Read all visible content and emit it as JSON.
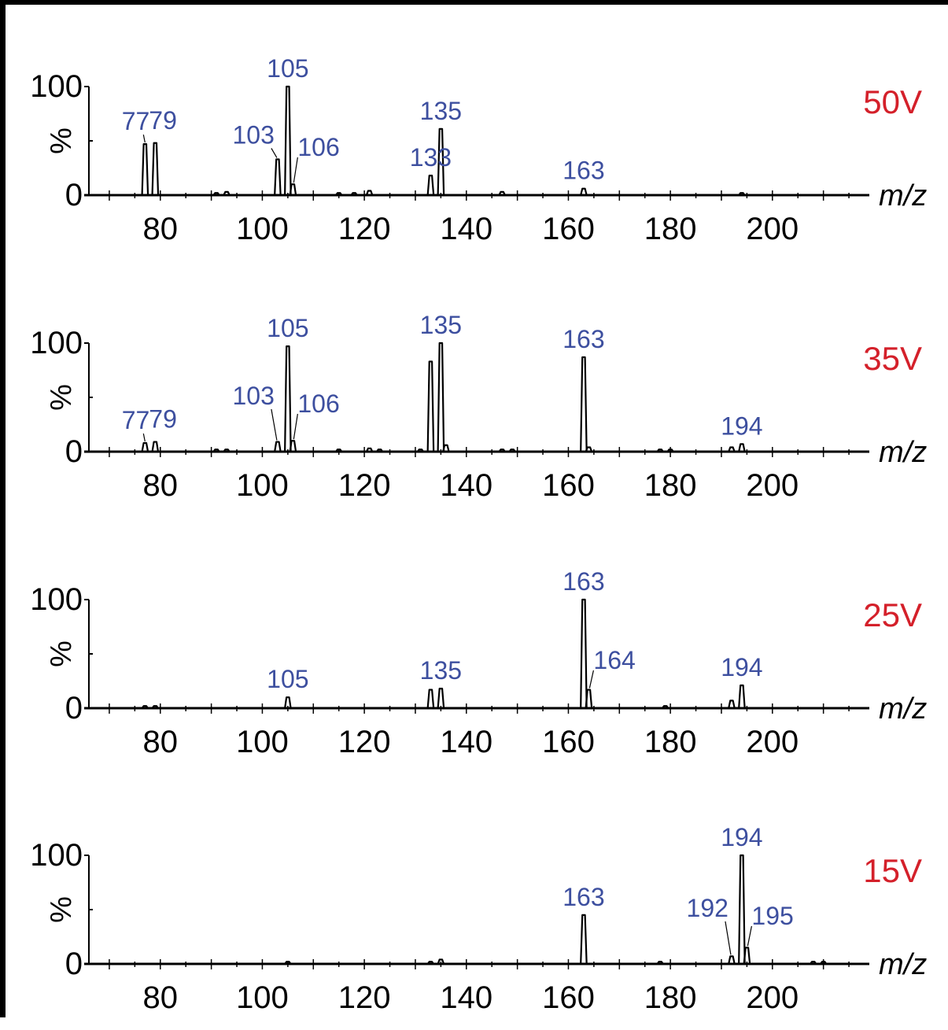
{
  "colors": {
    "peak_label": "#3d4f9f",
    "voltage": "#d4202a",
    "axis": "#000000"
  },
  "chart_data": [
    {
      "type": "line",
      "title": "50V",
      "xlabel": "m/z",
      "ylabel": "%",
      "xlim": [
        66,
        219
      ],
      "ylim": [
        0,
        100
      ],
      "x_ticks": [
        "80",
        "100",
        "120",
        "140",
        "160",
        "180",
        "200"
      ],
      "y_ticks": [
        "0",
        "100"
      ],
      "peaks": [
        [
          77,
          47
        ],
        [
          79,
          48
        ],
        [
          91,
          2
        ],
        [
          93,
          3
        ],
        [
          103,
          33
        ],
        [
          105,
          100
        ],
        [
          106,
          10
        ],
        [
          115,
          2
        ],
        [
          118,
          2
        ],
        [
          121,
          4
        ],
        [
          133,
          18
        ],
        [
          135,
          61
        ],
        [
          147,
          3
        ],
        [
          163,
          6
        ],
        [
          194,
          2
        ]
      ],
      "labels": [
        {
          "mz": 77,
          "text": "77"
        },
        {
          "mz": 79,
          "text": "79"
        },
        {
          "mz": 103,
          "text": "103"
        },
        {
          "mz": 105,
          "text": "105"
        },
        {
          "mz": 106,
          "text": "106"
        },
        {
          "mz": 133,
          "text": "133"
        },
        {
          "mz": 135,
          "text": "135"
        },
        {
          "mz": 163,
          "text": "163"
        }
      ]
    },
    {
      "type": "line",
      "title": "35V",
      "xlabel": "m/z",
      "ylabel": "%",
      "xlim": [
        66,
        219
      ],
      "ylim": [
        0,
        100
      ],
      "x_ticks": [
        "80",
        "100",
        "120",
        "140",
        "160",
        "180",
        "200"
      ],
      "y_ticks": [
        "0",
        "100"
      ],
      "peaks": [
        [
          77,
          8
        ],
        [
          79,
          9
        ],
        [
          91,
          2
        ],
        [
          93,
          2
        ],
        [
          103,
          9
        ],
        [
          105,
          97
        ],
        [
          106,
          10
        ],
        [
          115,
          2
        ],
        [
          121,
          3
        ],
        [
          123,
          2
        ],
        [
          131,
          2
        ],
        [
          133,
          83
        ],
        [
          135,
          100
        ],
        [
          136,
          6
        ],
        [
          147,
          2
        ],
        [
          149,
          2
        ],
        [
          163,
          87
        ],
        [
          164,
          4
        ],
        [
          178,
          2
        ],
        [
          180,
          2
        ],
        [
          192,
          4
        ],
        [
          194,
          7
        ]
      ],
      "labels": [
        {
          "mz": 77,
          "text": "77"
        },
        {
          "mz": 79,
          "text": "79"
        },
        {
          "mz": 103,
          "text": "103"
        },
        {
          "mz": 105,
          "text": "105"
        },
        {
          "mz": 106,
          "text": "106"
        },
        {
          "mz": 135,
          "text": "135"
        },
        {
          "mz": 163,
          "text": "163"
        },
        {
          "mz": 194,
          "text": "194"
        }
      ]
    },
    {
      "type": "line",
      "title": "25V",
      "xlabel": "m/z",
      "ylabel": "%",
      "xlim": [
        66,
        219
      ],
      "ylim": [
        0,
        100
      ],
      "x_ticks": [
        "80",
        "100",
        "120",
        "140",
        "160",
        "180",
        "200"
      ],
      "y_ticks": [
        "0",
        "100"
      ],
      "peaks": [
        [
          77,
          2
        ],
        [
          79,
          2
        ],
        [
          105,
          10
        ],
        [
          133,
          17
        ],
        [
          135,
          18
        ],
        [
          163,
          100
        ],
        [
          164,
          17
        ],
        [
          179,
          2
        ],
        [
          192,
          7
        ],
        [
          194,
          21
        ]
      ],
      "labels": [
        {
          "mz": 105,
          "text": "105"
        },
        {
          "mz": 135,
          "text": "135"
        },
        {
          "mz": 163,
          "text": "163"
        },
        {
          "mz": 164,
          "text": "164"
        },
        {
          "mz": 194,
          "text": "194"
        }
      ]
    },
    {
      "type": "line",
      "title": "15V",
      "xlabel": "m/z",
      "ylabel": "%",
      "xlim": [
        66,
        219
      ],
      "ylim": [
        0,
        100
      ],
      "x_ticks": [
        "80",
        "100",
        "120",
        "140",
        "160",
        "180",
        "200"
      ],
      "y_ticks": [
        "0",
        "100"
      ],
      "peaks": [
        [
          105,
          2
        ],
        [
          133,
          2
        ],
        [
          135,
          4
        ],
        [
          163,
          45
        ],
        [
          178,
          2
        ],
        [
          192,
          7
        ],
        [
          194,
          100
        ],
        [
          195,
          15
        ],
        [
          208,
          2
        ],
        [
          210,
          2
        ]
      ],
      "labels": [
        {
          "mz": 163,
          "text": "163"
        },
        {
          "mz": 192,
          "text": "192"
        },
        {
          "mz": 194,
          "text": "194"
        },
        {
          "mz": 195,
          "text": "195"
        }
      ]
    }
  ]
}
